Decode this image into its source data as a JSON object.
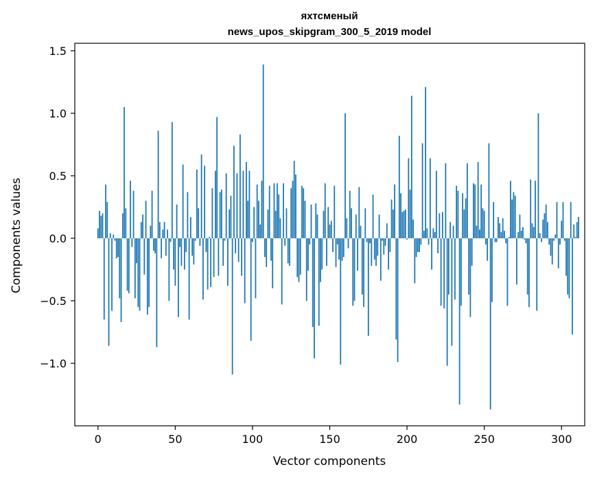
{
  "chart_data": {
    "type": "bar",
    "title_line1": "яхтсменый",
    "title_line2": "news_upos_skipgram_300_5_2019 model",
    "xlabel": "Vector components",
    "ylabel": "Components values",
    "xlim": [
      -15,
      315
    ],
    "ylim": [
      -1.5,
      1.56
    ],
    "xticks": [
      {
        "value": 0,
        "label": "0"
      },
      {
        "value": 50,
        "label": "50"
      },
      {
        "value": 100,
        "label": "100"
      },
      {
        "value": 150,
        "label": "150"
      },
      {
        "value": 200,
        "label": "200"
      },
      {
        "value": 250,
        "label": "250"
      },
      {
        "value": 300,
        "label": "300"
      }
    ],
    "yticks": [
      {
        "value": -1.0,
        "label": "−1.0"
      },
      {
        "value": -0.5,
        "label": "−0.5"
      },
      {
        "value": 0.0,
        "label": "0.0"
      },
      {
        "value": 0.5,
        "label": "0.5"
      },
      {
        "value": 1.0,
        "label": "1.0"
      },
      {
        "value": 1.5,
        "label": "1.5"
      }
    ],
    "bar_color": "#1f77b4",
    "values": [
      0.08,
      0.22,
      0.18,
      0.2,
      -0.65,
      0.43,
      0.29,
      -0.86,
      0.04,
      -0.58,
      0.03,
      -0.02,
      -0.16,
      -0.15,
      -0.48,
      -0.67,
      0.2,
      1.05,
      0.24,
      -0.42,
      -0.44,
      0.46,
      -0.07,
      0.38,
      -0.48,
      -0.2,
      -0.55,
      -0.58,
      0.13,
      0.19,
      -0.29,
      0.3,
      -0.61,
      -0.55,
      0.1,
      0.38,
      -0.1,
      -0.12,
      -0.87,
      0.86,
      0.13,
      -0.16,
      0.07,
      0.13,
      -0.14,
      0.07,
      -0.5,
      -0.03,
      0.93,
      -0.25,
      -0.38,
      0.27,
      -0.63,
      -0.07,
      -0.22,
      0.59,
      -0.25,
      -0.11,
      0.37,
      -0.65,
      0.17,
      -0.14,
      -0.21,
      -0.02,
      0.55,
      0.24,
      -0.06,
      0.67,
      -0.49,
      0.58,
      -0.11,
      -0.41,
      0.01,
      -0.39,
      0.4,
      -0.31,
      0.54,
      0.97,
      -0.3,
      0.37,
      0.39,
      -0.22,
      -0.02,
      0.52,
      -0.38,
      0.23,
      0.34,
      -1.09,
      0.74,
      -0.12,
      0.52,
      -0.19,
      0.83,
      -0.3,
      0.54,
      -0.52,
      0.61,
      0.3,
      0.54,
      -0.82,
      -0.03,
      0.25,
      -0.48,
      0.43,
      0.3,
      0.11,
      0.46,
      1.39,
      -0.15,
      -0.23,
      0.23,
      0.42,
      -0.18,
      -0.4,
      0.44,
      0.22,
      0.44,
      0.35,
      0.16,
      -0.53,
      0.44,
      -0.06,
      0.24,
      -0.2,
      -0.22,
      0.4,
      0.46,
      0.62,
      0.51,
      -0.31,
      -0.35,
      -0.29,
      0.42,
      0.4,
      0.3,
      -0.5,
      -0.26,
      -0.05,
      0.27,
      -0.71,
      -0.96,
      0.28,
      0.19,
      -0.7,
      -0.35,
      -0.25,
      0.22,
      0.44,
      -0.22,
      0.25,
      0.11,
      0.14,
      -0.11,
      0.42,
      -0.23,
      -0.05,
      -0.17,
      -1.01,
      -0.18,
      -0.15,
      1.0,
      0.16,
      -0.08,
      0.38,
      0.24,
      -0.54,
      -0.5,
      0.19,
      -0.26,
      0.41,
      0.1,
      -0.45,
      -0.55,
      0.24,
      -0.03,
      -0.78,
      -0.04,
      -0.22,
      0.35,
      -0.17,
      -0.22,
      -0.14,
      0.19,
      -0.34,
      -0.02,
      -0.13,
      -0.06,
      0.12,
      -0.25,
      -0.11,
      0.31,
      0.23,
      0.43,
      -0.81,
      -0.99,
      0.82,
      0.36,
      0.21,
      0.22,
      0.23,
      -0.01,
      0.64,
      0.39,
      1.14,
      0.15,
      -0.36,
      -0.15,
      -0.11,
      -0.11,
      -0.05,
      0.76,
      0.06,
      1.21,
      0.08,
      -0.05,
      0.64,
      -0.25,
      0.08,
      0.05,
      0.54,
      -0.12,
      0.2,
      -0.54,
      0.21,
      -0.56,
      0.6,
      -1.02,
      -0.45,
      0.13,
      -0.86,
      0.1,
      -0.49,
      0.42,
      0.38,
      -1.33,
      -0.54,
      0.36,
      0.23,
      0.32,
      0.6,
      -0.45,
      -0.63,
      -0.22,
      0.44,
      0.43,
      0.1,
      0.61,
      0.07,
      0.43,
      0.24,
      0.22,
      -0.05,
      -0.18,
      0.76,
      -1.37,
      -0.51,
      0.29,
      -0.03,
      -0.03,
      0.17,
      0.12,
      0.05,
      0.16,
      0.06,
      -0.04,
      -0.54,
      0.01,
      0.46,
      0.31,
      0.37,
      0.34,
      -0.37,
      0.05,
      0.19,
      0.06,
      0.09,
      -0.01,
      -0.04,
      -0.45,
      -0.55,
      0.47,
      0.12,
      0.09,
      0.46,
      -0.58,
      1.0,
      0.04,
      -0.03,
      0.15,
      0.2,
      0.27,
      0.13,
      -0.05,
      -0.14,
      -0.21,
      -0.02,
      0.03,
      0.29,
      -0.24,
      -0.05,
      0.14,
      0.29,
      -0.02,
      -0.3,
      -0.45,
      -0.48,
      0.29,
      -0.77,
      0.11,
      0.01,
      0.13,
      0.17
    ]
  }
}
